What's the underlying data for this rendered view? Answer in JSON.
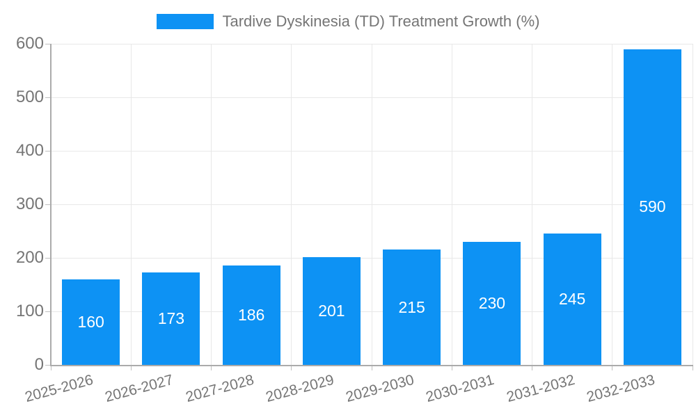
{
  "chart_data": {
    "type": "bar",
    "title": "Tardive Dyskinesia (TD) Treatment Growth (%)",
    "legend": {
      "position": "top",
      "label": "Tardive Dyskinesia (TD) Treatment Growth (%)"
    },
    "categories": [
      "2025-2026",
      "2026-2027",
      "2027-2028",
      "2028-2029",
      "2029-2030",
      "2030-2031",
      "2031-2032",
      "2032-2033"
    ],
    "values": [
      160,
      173,
      186,
      201,
      215,
      230,
      245,
      590
    ],
    "xlabel": "",
    "ylabel": "",
    "ylim": [
      0,
      600
    ],
    "yticks": [
      0,
      100,
      200,
      300,
      400,
      500,
      600
    ],
    "grid": true,
    "x_label_rotation_deg": -15,
    "colors": {
      "bar": "#0d92f4",
      "value_label": "#ffffff",
      "axis_text": "#757575",
      "grid_line": "#e8e8e8",
      "axis_line": "#ababab"
    }
  }
}
